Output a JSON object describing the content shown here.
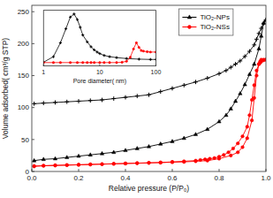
{
  "chart_data": [
    {
      "type": "line",
      "xlabel": "Relative pressure (P/P₀)",
      "ylabel": "Volume adsorbed( cm³/g STP)",
      "xlim": [
        0.0,
        1.0
      ],
      "ylim": [
        0,
        260
      ],
      "xticks": [
        {
          "value": 0.0,
          "label": "0.0"
        },
        0.2,
        0.4,
        0.6,
        0.8,
        {
          "value": 1.0,
          "label": "1.0"
        }
      ],
      "yticks": [
        0,
        50,
        100,
        150,
        200,
        250
      ],
      "grid": false,
      "legend": "upper right",
      "series": [
        {
          "name": "TiO₂-NPs",
          "color": "#000000",
          "marker": "triangle",
          "x": [
            0.01,
            0.05,
            0.1,
            0.15,
            0.2,
            0.25,
            0.3,
            0.35,
            0.4,
            0.45,
            0.5,
            0.55,
            0.6,
            0.65,
            0.7,
            0.75,
            0.8,
            0.83,
            0.85,
            0.87,
            0.89,
            0.91,
            0.93,
            0.95,
            0.97,
            0.98,
            0.99,
            1.0
          ],
          "values": [
            17,
            19,
            20,
            22,
            24,
            26,
            28,
            30,
            33,
            36,
            39,
            43,
            47,
            52,
            58,
            66,
            78,
            88,
            98,
            110,
            122,
            136,
            152,
            168,
            192,
            212,
            232,
            237
          ]
        },
        {
          "color": "#000000",
          "marker": "plus",
          "x": [
            1.0,
            0.99,
            0.98,
            0.97,
            0.96,
            0.95,
            0.93,
            0.91,
            0.89,
            0.87,
            0.85,
            0.83,
            0.8,
            0.75,
            0.7,
            0.65,
            0.6,
            0.55,
            0.5,
            0.45,
            0.4,
            0.35,
            0.3,
            0.25,
            0.2,
            0.15,
            0.1,
            0.05,
            0.01
          ],
          "values": [
            237,
            232,
            224,
            216,
            207,
            198,
            188,
            180,
            173,
            168,
            163,
            158,
            153,
            146,
            140,
            135,
            130,
            125,
            120,
            118,
            116,
            114,
            112,
            111,
            110,
            109,
            108,
            107,
            106
          ]
        },
        {
          "name": "TiO₂-NSs",
          "color": "#ff0000",
          "marker": "circle",
          "x": [
            0.01,
            0.05,
            0.1,
            0.15,
            0.2,
            0.25,
            0.3,
            0.35,
            0.4,
            0.45,
            0.5,
            0.55,
            0.6,
            0.65,
            0.7,
            0.75,
            0.8,
            0.85,
            0.88,
            0.9,
            0.92,
            0.94,
            0.95,
            0.96,
            0.97,
            0.975,
            0.98,
            0.99,
            1.0
          ],
          "values": [
            8,
            9,
            9.5,
            10,
            10.5,
            11,
            11.5,
            12,
            12.5,
            13,
            13.5,
            14,
            14.5,
            15,
            16,
            17,
            20,
            25,
            30,
            38,
            52,
            80,
            115,
            150,
            168,
            172,
            175,
            175,
            175
          ]
        },
        {
          "color": "#ff0000",
          "marker": "circle",
          "x": [
            1.0,
            0.99,
            0.98,
            0.975,
            0.97,
            0.96,
            0.95,
            0.94,
            0.93,
            0.92,
            0.9,
            0.88,
            0.86,
            0.84,
            0.82,
            0.8,
            0.78,
            0.76,
            0.74,
            0.72,
            0.7,
            0.65,
            0.6,
            0.55,
            0.5,
            0.45,
            0.4,
            0.35,
            0.3,
            0.25,
            0.2,
            0.15,
            0.1,
            0.05,
            0.01
          ],
          "values": [
            175,
            174,
            172,
            170,
            168,
            158,
            135,
            112,
            88,
            70,
            55,
            44,
            36,
            30,
            26,
            23,
            21,
            20,
            19,
            18,
            17,
            16,
            15,
            14,
            13.5,
            13,
            12.5,
            12,
            11.5,
            11,
            10.5,
            10,
            9.5,
            9,
            8.5
          ]
        }
      ]
    },
    {
      "type": "line",
      "xlabel": "Pore diameter( nm)",
      "log": "x",
      "xlim": [
        1,
        100
      ],
      "ylim": [
        100,
        280
      ],
      "xticks": [
        1,
        10,
        100
      ],
      "tick_labels": "x",
      "grid": false,
      "series": [
        {
          "color": "#000000",
          "marker": "plus",
          "x": [
            1.0,
            1.5,
            2.0,
            2.5,
            3.0,
            3.5,
            4.0,
            4.5,
            5.0,
            6.0,
            7.0,
            8.0,
            9.0,
            10.0,
            12.0,
            15.0,
            20.0,
            30.0,
            50.0,
            80.0,
            100.0
          ],
          "values": [
            112,
            130,
            175,
            220,
            258,
            268,
            250,
            225,
            200,
            178,
            162,
            152,
            145,
            140,
            134,
            130,
            127,
            124,
            122,
            121,
            121
          ]
        },
        {
          "color": "#ff0000",
          "marker": "circle",
          "x": [
            1.0,
            1.5,
            2.0,
            3.0,
            4.0,
            5.0,
            6.0,
            7.0,
            8.0,
            10.0,
            12.0,
            15.0,
            20.0,
            25.0,
            30.0,
            35.0,
            40.0,
            45.0,
            50.0,
            55.0,
            60.0,
            70.0,
            80.0,
            100.0
          ],
          "values": [
            111,
            111,
            111,
            111,
            111,
            111,
            111,
            111,
            111,
            111,
            111,
            111,
            111,
            112,
            115,
            128,
            155,
            175,
            160,
            150,
            148,
            146,
            145,
            145
          ]
        }
      ]
    }
  ]
}
